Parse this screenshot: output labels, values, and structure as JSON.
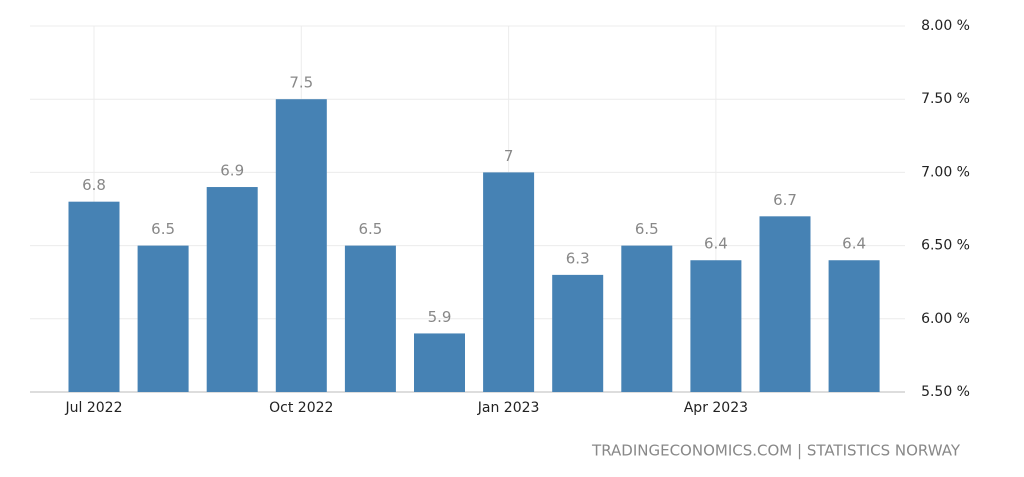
{
  "chart_data": {
    "type": "bar",
    "categories": [
      "Jul 2022",
      null,
      null,
      "Oct 2022",
      null,
      null,
      "Jan 2023",
      null,
      null,
      "Apr 2023",
      null,
      null
    ],
    "values": [
      6.8,
      6.5,
      6.9,
      7.5,
      6.5,
      5.9,
      7,
      6.3,
      6.5,
      6.4,
      6.7,
      6.4
    ],
    "color": "#4682b4",
    "ylim": [
      5.5,
      8
    ],
    "yticks": [
      {
        "value": 5.5,
        "label": "5.50 %"
      },
      {
        "value": 6,
        "label": "6.00 %"
      },
      {
        "value": 6.5,
        "label": "6.50 %"
      },
      {
        "value": 7,
        "label": "7.00 %"
      },
      {
        "value": 7.5,
        "label": "7.50 %"
      },
      {
        "value": 8,
        "label": "8.00 %"
      }
    ],
    "grid": true,
    "source": "TRADINGECONOMICS.COM | STATISTICS NORWAY"
  }
}
